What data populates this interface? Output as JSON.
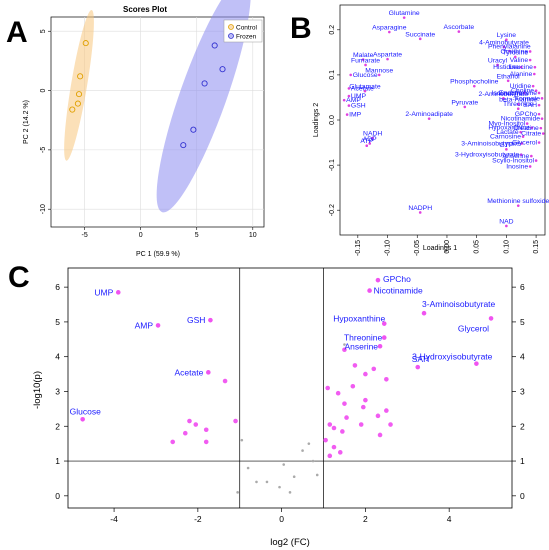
{
  "chart_data": [
    {
      "panel": "A",
      "type": "scatter",
      "title": "Scores Plot",
      "xlabel": "PC 1 (59.9 %)",
      "ylabel": "PC 2 (14.2 %)",
      "xlim": [
        -8,
        11
      ],
      "ylim": [
        -11.5,
        6.2
      ],
      "xticks": [
        -5,
        0,
        5,
        10
      ],
      "yticks": [
        -10,
        -5,
        0,
        5
      ],
      "legend_position": "top-right",
      "series": [
        {
          "name": "Control",
          "color": "#e0a000",
          "ellipse_color": "#f7c77e",
          "points": [
            [
              -4.9,
              4.0
            ],
            [
              -5.4,
              1.2
            ],
            [
              -5.5,
              -0.3
            ],
            [
              -5.6,
              -1.1
            ],
            [
              -6.1,
              -1.6
            ]
          ]
        },
        {
          "name": "Frozen",
          "color": "#3232d0",
          "ellipse_color": "#8c8cf0",
          "points": [
            [
              6.6,
              3.8
            ],
            [
              7.3,
              1.8
            ],
            [
              5.7,
              0.6
            ],
            [
              4.7,
              -3.3
            ],
            [
              3.8,
              -4.6
            ]
          ]
        }
      ]
    },
    {
      "panel": "B",
      "type": "scatter",
      "title": "",
      "xlabel": "Loadings 1",
      "ylabel": "Loadings 2",
      "xlim": [
        -0.18,
        0.165
      ],
      "ylim": [
        -0.255,
        0.255
      ],
      "xticks": [
        -0.15,
        -0.1,
        -0.05,
        0.0,
        0.05,
        0.1,
        0.15
      ],
      "xtick_labels": [
        "-0.15",
        "-0.10",
        "-0.05",
        "0.00",
        "0.05",
        "0.10",
        "0.15"
      ],
      "yticks": [
        -0.2,
        -0.1,
        0.0,
        0.1,
        0.2
      ],
      "yticklabels": [
        "-0.2",
        "-0.1",
        "0.0",
        "0.1",
        "0.2"
      ],
      "point_color": "#e040e0",
      "points": [
        {
          "label": "Glutamine",
          "x": -0.072,
          "y": 0.227
        },
        {
          "label": "Asparagine",
          "x": -0.097,
          "y": 0.195
        },
        {
          "label": "Succinate",
          "x": -0.045,
          "y": 0.18
        },
        {
          "label": "Ascorbate",
          "x": 0.02,
          "y": 0.196
        },
        {
          "label": "Lysine",
          "x": 0.1,
          "y": 0.178
        },
        {
          "label": "4-Aminobutyrate",
          "x": 0.096,
          "y": 0.162
        },
        {
          "label": "Phenylalanine",
          "x": 0.105,
          "y": 0.153
        },
        {
          "label": "Ornithine",
          "x": 0.14,
          "y": 0.152
        },
        {
          "label": "Tyrosine",
          "x": 0.115,
          "y": 0.14
        },
        {
          "label": "Valine",
          "x": 0.14,
          "y": 0.133
        },
        {
          "label": "Malate",
          "x": -0.141,
          "y": 0.134
        },
        {
          "label": "Fumarate",
          "x": -0.137,
          "y": 0.122
        },
        {
          "label": "Aspartate",
          "x": -0.1,
          "y": 0.135
        },
        {
          "label": "Uracyl",
          "x": 0.085,
          "y": 0.122
        },
        {
          "label": "Histidine",
          "x": 0.125,
          "y": 0.117
        },
        {
          "label": "Leucine",
          "x": 0.148,
          "y": 0.117
        },
        {
          "label": "Alanine",
          "x": 0.147,
          "y": 0.102
        },
        {
          "label": "Glucose",
          "x": -0.162,
          "y": 0.1
        },
        {
          "label": "Mannose",
          "x": -0.114,
          "y": 0.1
        },
        {
          "label": "Ethanol",
          "x": 0.103,
          "y": 0.087
        },
        {
          "label": "Uridine",
          "x": 0.145,
          "y": 0.075
        },
        {
          "label": "Acetate",
          "x": -0.165,
          "y": 0.07
        },
        {
          "label": "Glutamate",
          "x": -0.138,
          "y": 0.064
        },
        {
          "label": "Phosphocholine",
          "x": 0.046,
          "y": 0.075
        },
        {
          "label": "Choline",
          "x": 0.15,
          "y": 0.065
        },
        {
          "label": "UMP",
          "x": -0.165,
          "y": 0.053
        },
        {
          "label": "Isoleucine",
          "x": 0.13,
          "y": 0.06
        },
        {
          "label": "Endothelene",
          "x": 0.155,
          "y": 0.06
        },
        {
          "label": "AMP",
          "x": -0.173,
          "y": 0.044
        },
        {
          "label": "2-Aminobutyrate",
          "x": 0.095,
          "y": 0.048
        },
        {
          "label": "Formate",
          "x": 0.16,
          "y": 0.048
        },
        {
          "label": "GSH",
          "x": -0.165,
          "y": 0.032
        },
        {
          "label": "Pyruvate",
          "x": 0.03,
          "y": 0.029
        },
        {
          "label": "beta-Alanine",
          "x": 0.12,
          "y": 0.035
        },
        {
          "label": "SAH",
          "x": 0.155,
          "y": 0.033
        },
        {
          "label": "Threonine",
          "x": 0.12,
          "y": 0.025
        },
        {
          "label": "IMP",
          "x": -0.168,
          "y": 0.012
        },
        {
          "label": "GPCho",
          "x": 0.155,
          "y": 0.013
        },
        {
          "label": "Nicotinamide",
          "x": 0.16,
          "y": 0.003
        },
        {
          "label": "2-Aminoadipate",
          "x": -0.03,
          "y": 0.003
        },
        {
          "label": "Myo-Inositol",
          "x": 0.135,
          "y": -0.008
        },
        {
          "label": "Hypoxanthine",
          "x": 0.143,
          "y": -0.017
        },
        {
          "label": "Creatine",
          "x": 0.158,
          "y": -0.018
        },
        {
          "label": "Lactate",
          "x": 0.124,
          "y": -0.027
        },
        {
          "label": "Citrate",
          "x": 0.162,
          "y": -0.03
        },
        {
          "label": "NADH",
          "x": -0.125,
          "y": -0.04
        },
        {
          "label": "ADP",
          "x": -0.13,
          "y": -0.052
        },
        {
          "label": "ATP",
          "x": -0.135,
          "y": -0.057
        },
        {
          "label": "Carnosine",
          "x": 0.128,
          "y": -0.037
        },
        {
          "label": "3-Aminoisobutyrate",
          "x": 0.126,
          "y": -0.052
        },
        {
          "label": "Glycerol",
          "x": 0.155,
          "y": -0.05
        },
        {
          "label": "GTP",
          "x": 0.1,
          "y": -0.065
        },
        {
          "label": "3-Hydroxyisobutyrate",
          "x": 0.125,
          "y": -0.077
        },
        {
          "label": "Anserine",
          "x": 0.142,
          "y": -0.08
        },
        {
          "label": "Scyllo-Inositol",
          "x": 0.15,
          "y": -0.09
        },
        {
          "label": "Inosine",
          "x": 0.14,
          "y": -0.103
        },
        {
          "label": "NADPH",
          "x": -0.045,
          "y": -0.205
        },
        {
          "label": "Methionine sulfoxide",
          "x": 0.12,
          "y": -0.19
        },
        {
          "label": "NAD",
          "x": 0.1,
          "y": -0.235
        }
      ]
    },
    {
      "panel": "C",
      "type": "scatter",
      "title": "",
      "xlabel": "log2 (FC)",
      "ylabel": "-log10(p)",
      "xlim": [
        -5.1,
        5.5
      ],
      "ylim": [
        -0.35,
        6.55
      ],
      "xticks": [
        -4,
        -2,
        0,
        2,
        4
      ],
      "yticks": [
        0,
        1,
        2,
        3,
        4,
        5,
        6
      ],
      "thresholds": {
        "fc_low": -1,
        "fc_high": 1,
        "p_line": 1
      },
      "significant_color": "#ee40ee",
      "nonsignificant_color": "#aaaaaa",
      "labeled_points": [
        {
          "label": "GPCho",
          "x": 2.3,
          "y": 6.2
        },
        {
          "label": "UMP",
          "x": -3.9,
          "y": 5.85
        },
        {
          "label": "Nicotinamide",
          "x": 2.1,
          "y": 5.9
        },
        {
          "label": "3-Aminoisobutyrate",
          "x": 3.4,
          "y": 5.25
        },
        {
          "label": "GSH",
          "x": -1.7,
          "y": 5.05
        },
        {
          "label": "AMP",
          "x": -2.95,
          "y": 4.9
        },
        {
          "label": "Hypoxanthine",
          "x": 2.45,
          "y": 4.95
        },
        {
          "label": "Glycerol",
          "x": 5.0,
          "y": 5.1
        },
        {
          "label": "Threonine",
          "x": 2.45,
          "y": 4.55
        },
        {
          "label": "Anserine",
          "x": 2.35,
          "y": 4.3
        },
        {
          "label": "SAH",
          "x": 3.25,
          "y": 3.7
        },
        {
          "label": "3-Hydroxyisobutyrate",
          "x": 4.65,
          "y": 3.8
        },
        {
          "label": "Acetate",
          "x": -1.75,
          "y": 3.55
        },
        {
          "label": "Glucose",
          "x": -4.75,
          "y": 2.2
        }
      ],
      "other_significant": [
        [
          -1.35,
          3.3
        ],
        [
          -2.2,
          2.15
        ],
        [
          -2.05,
          2.05
        ],
        [
          -1.8,
          1.9
        ],
        [
          -1.8,
          1.55
        ],
        [
          -2.6,
          1.55
        ],
        [
          -2.3,
          1.8
        ],
        [
          -1.1,
          2.15
        ],
        [
          1.5,
          4.2
        ],
        [
          1.75,
          3.75
        ],
        [
          2.0,
          3.5
        ],
        [
          2.2,
          3.65
        ],
        [
          2.5,
          3.35
        ],
        [
          1.1,
          3.1
        ],
        [
          1.35,
          2.95
        ],
        [
          2.0,
          2.75
        ],
        [
          1.5,
          2.65
        ],
        [
          1.95,
          2.55
        ],
        [
          2.5,
          2.45
        ],
        [
          2.3,
          2.3
        ],
        [
          1.55,
          2.25
        ],
        [
          1.15,
          2.05
        ],
        [
          1.25,
          1.95
        ],
        [
          1.45,
          1.85
        ],
        [
          1.9,
          2.05
        ],
        [
          2.35,
          1.75
        ],
        [
          1.05,
          1.6
        ],
        [
          1.25,
          1.4
        ],
        [
          1.4,
          1.25
        ],
        [
          1.15,
          1.15
        ],
        [
          2.6,
          2.05
        ],
        [
          1.7,
          3.15
        ]
      ],
      "nonsignificant": [
        [
          1.5,
          4.35
        ],
        [
          -0.95,
          1.6
        ],
        [
          -0.8,
          0.8
        ],
        [
          -1.05,
          0.1
        ],
        [
          -0.05,
          0.25
        ],
        [
          0.2,
          0.1
        ],
        [
          -0.35,
          0.4
        ],
        [
          0.05,
          0.9
        ],
        [
          0.5,
          1.3
        ],
        [
          0.75,
          1.0
        ],
        [
          0.85,
          0.6
        ],
        [
          -0.6,
          0.4
        ],
        [
          0.3,
          0.55
        ],
        [
          0.65,
          1.5
        ]
      ]
    }
  ]
}
